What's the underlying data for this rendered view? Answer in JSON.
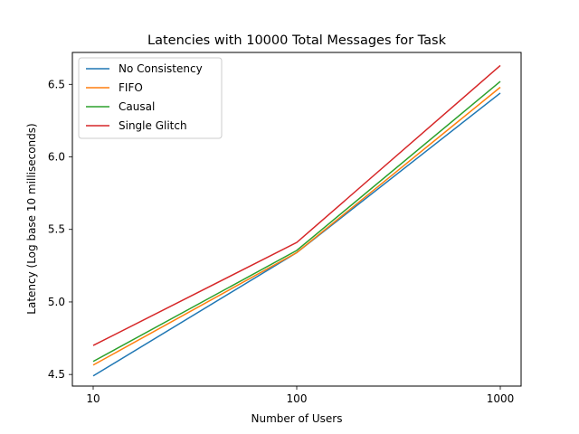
{
  "chart_data": {
    "type": "line",
    "title": "Latencies with 10000 Total Messages for Task",
    "xlabel": "Number of Users",
    "ylabel": "Latency (Log base 10 milliseconds)",
    "x": [
      10,
      100,
      1000
    ],
    "x_ticks": [
      "10",
      "100",
      "1000"
    ],
    "x_scale": "log",
    "ylim": [
      4.42,
      6.72
    ],
    "y_ticks": [
      "4.5",
      "5.0",
      "5.5",
      "6.0",
      "6.5"
    ],
    "grid": false,
    "legend_position": "top-left",
    "series": [
      {
        "name": "No Consistency",
        "color": "#1f77b4",
        "values": [
          4.49,
          5.34,
          6.44
        ]
      },
      {
        "name": "FIFO",
        "color": "#ff7f0e",
        "values": [
          4.565,
          5.34,
          6.48
        ]
      },
      {
        "name": "Causal",
        "color": "#2ca02c",
        "values": [
          4.59,
          5.355,
          6.52
        ]
      },
      {
        "name": "Single Glitch",
        "color": "#d62728",
        "values": [
          4.7,
          5.41,
          6.63
        ]
      }
    ]
  }
}
